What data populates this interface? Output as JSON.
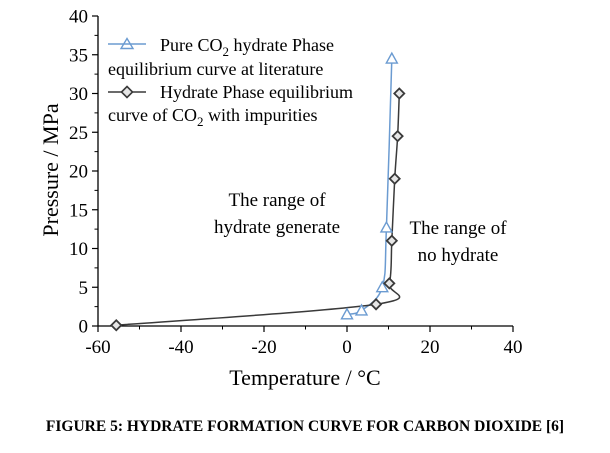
{
  "caption": "FIGURE 5: HYDRATE FORMATION CURVE FOR CARBON DIOXIDE [6]",
  "chart_data": {
    "type": "line",
    "xlabel": "Temperature / °C",
    "ylabel": "Pressure / MPa",
    "xlim": [
      -60,
      40
    ],
    "ylim": [
      0,
      40
    ],
    "xticks": [
      -60,
      -40,
      -20,
      0,
      20,
      40
    ],
    "yticks": [
      0,
      5,
      10,
      15,
      20,
      25,
      30,
      35,
      40
    ],
    "grid": false,
    "legend_position": "top-left",
    "series": [
      {
        "name": "Pure CO2 hydrate Phase equilibrium curve at literature",
        "legend_lines": [
          "Pure CO",
          "2",
          " hydrate Phase",
          "equilibrium curve at literature"
        ],
        "marker": "triangle",
        "color": "#6b9bd1",
        "x": [
          0,
          3.5,
          8.5,
          9.5,
          10.8
        ],
        "y": [
          1.5,
          2.0,
          5.0,
          12.7,
          34.5
        ]
      },
      {
        "name": "Hydrate Phase equilibrium curve of CO2 with impurities",
        "legend_lines": [
          "Hydrate Phase equilibrium",
          "curve of CO",
          "2",
          " with impurities"
        ],
        "marker": "diamond",
        "color": "#3a3a3a",
        "x": [
          -55.6,
          7,
          10.2,
          10.8,
          11.5,
          12.2,
          12.6
        ],
        "y": [
          0.1,
          2.8,
          5.5,
          11.0,
          19.0,
          24.5,
          30.0
        ]
      }
    ],
    "annotations": [
      {
        "id": "hydrate",
        "lines": [
          "The range of",
          "hydrate generate"
        ]
      },
      {
        "id": "nohydrate",
        "lines": [
          "The range of",
          "no hydrate"
        ]
      }
    ]
  }
}
